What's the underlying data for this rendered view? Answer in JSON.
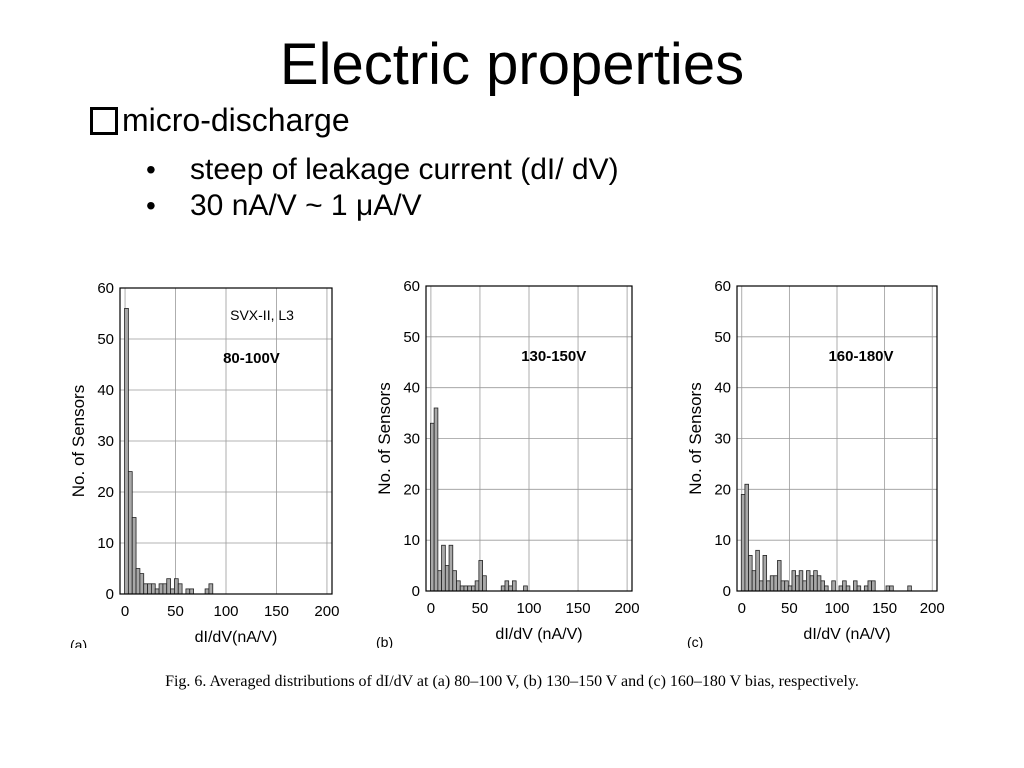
{
  "slide": {
    "title": "Electric properties",
    "heading": "micro-discharge",
    "bullets": [
      "steep of leakage current (dI/ dV)",
      "30 nA/V ~ 1 μA/V"
    ],
    "caption": "Fig. 6.  Averaged distributions of dI/dV at (a) 80–100 V, (b) 130–150 V and (c) 160–180 V bias, respectively."
  },
  "chart_data": [
    {
      "type": "bar",
      "panel_label": "(a)",
      "annotation": "SVX-II, L3",
      "range_label": "80-100V",
      "xlabel": "dI/dV(nA/V)",
      "ylabel": "No. of Sensors",
      "xlim": [
        -5,
        205
      ],
      "ylim": [
        0,
        60
      ],
      "xticks": [
        "0",
        "50",
        "100",
        "150",
        "200"
      ],
      "yticks": [
        "0",
        "10",
        "20",
        "30",
        "40",
        "50",
        "60"
      ],
      "bin_width": 3.8,
      "grid": true,
      "bin_starts": [
        -0.5,
        3.3,
        7.1,
        10.9,
        14.7,
        18.5,
        22.3,
        26.1,
        29.9,
        33.7,
        37.5,
        41.3,
        45.1,
        48.9,
        52.7,
        60.3,
        64.1,
        79.3,
        83.1
      ],
      "values": [
        56,
        24,
        15,
        5,
        4,
        2,
        2,
        2,
        1,
        2,
        2,
        3,
        1,
        3,
        2,
        1,
        1,
        1,
        2
      ]
    },
    {
      "type": "bar",
      "panel_label": "(b)",
      "range_label": "130-150V",
      "xlabel": "dI/dV (nA/V)",
      "ylabel": "No. of Sensors",
      "xlim": [
        -5,
        205
      ],
      "ylim": [
        0,
        60
      ],
      "xticks": [
        "0",
        "50",
        "100",
        "150",
        "200"
      ],
      "yticks": [
        "0",
        "10",
        "20",
        "30",
        "40",
        "50",
        "60"
      ],
      "bin_width": 3.8,
      "grid": true,
      "bin_starts": [
        -0.5,
        3.3,
        7.1,
        10.9,
        14.7,
        18.5,
        22.3,
        26.1,
        29.9,
        33.7,
        37.5,
        41.3,
        45.1,
        48.9,
        52.7,
        71.7,
        75.5,
        79.3,
        83.1,
        94.5
      ],
      "values": [
        33,
        36,
        4,
        9,
        5,
        9,
        4,
        2,
        1,
        1,
        1,
        1,
        2,
        6,
        3,
        1,
        2,
        1,
        2,
        1
      ]
    },
    {
      "type": "bar",
      "panel_label": "(c)",
      "range_label": "160-180V",
      "xlabel": "dI/dV (nA/V)",
      "ylabel": "No. of Sensors",
      "xlim": [
        -5,
        205
      ],
      "ylim": [
        0,
        60
      ],
      "xticks": [
        "0",
        "50",
        "100",
        "150",
        "200"
      ],
      "yticks": [
        "0",
        "10",
        "20",
        "30",
        "40",
        "50",
        "60"
      ],
      "bin_width": 3.8,
      "grid": true,
      "bin_starts": [
        -0.5,
        3.3,
        7.1,
        10.9,
        14.7,
        18.5,
        22.3,
        26.1,
        29.9,
        33.7,
        37.5,
        41.3,
        45.1,
        48.9,
        52.7,
        56.5,
        60.3,
        64.1,
        67.9,
        71.7,
        75.5,
        79.3,
        83.1,
        86.9,
        94.5,
        102.1,
        105.9,
        109.7,
        117.3,
        121.1,
        128.7,
        132.5,
        136.3,
        151.5,
        155.3,
        174.3
      ],
      "values": [
        19,
        21,
        7,
        4,
        8,
        2,
        7,
        2,
        3,
        3,
        6,
        2,
        2,
        1,
        4,
        3,
        4,
        2,
        4,
        3,
        4,
        3,
        2,
        1,
        2,
        1,
        2,
        1,
        2,
        1,
        1,
        2,
        2,
        1,
        1,
        1
      ]
    }
  ]
}
